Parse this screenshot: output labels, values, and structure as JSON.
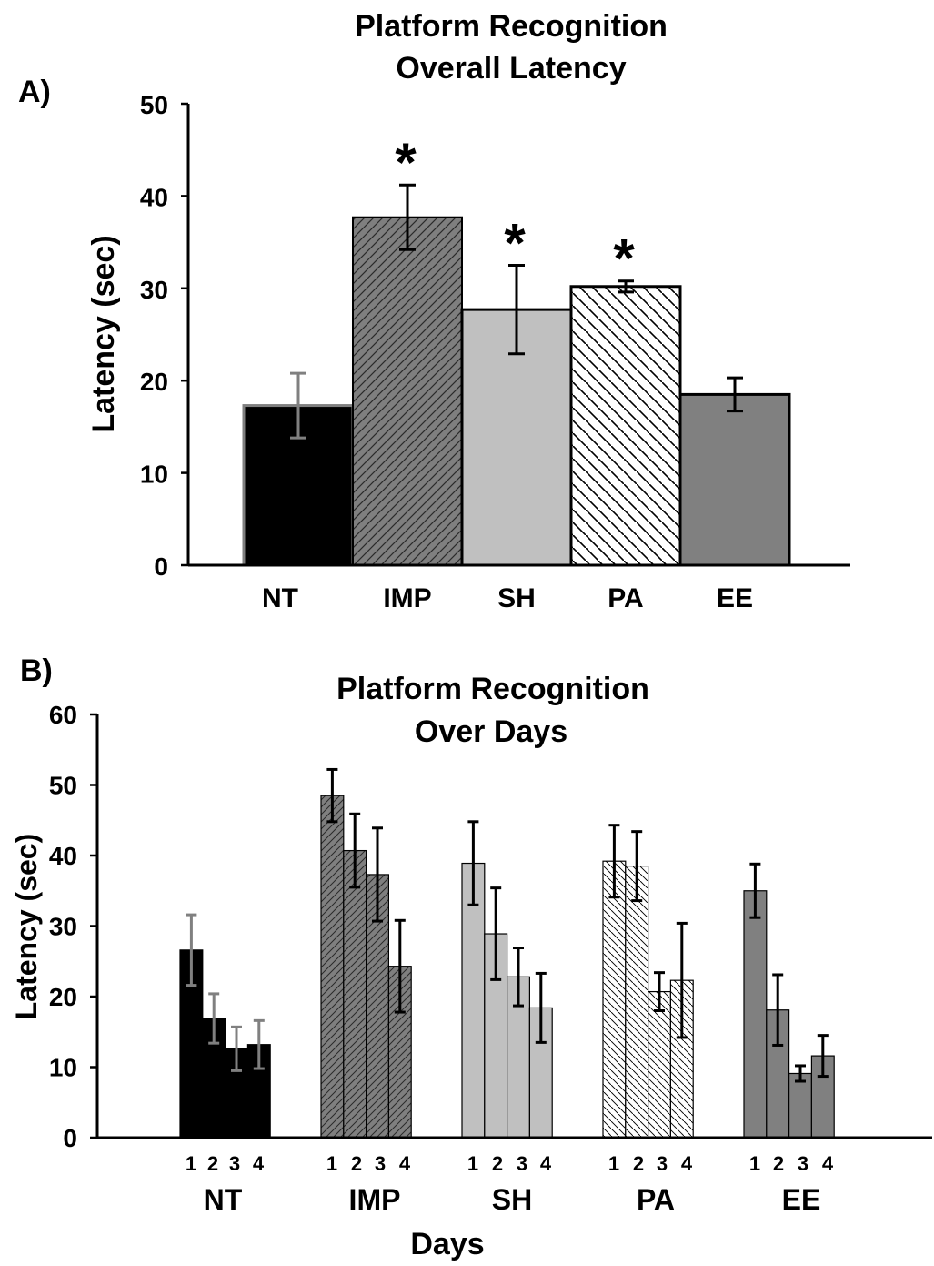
{
  "chart_data": [
    {
      "panel_label": "A)",
      "type": "bar",
      "title": [
        "Platform Recognition",
        "Overall Latency"
      ],
      "ylabel": "Latency (sec)",
      "ylim": [
        0,
        50
      ],
      "yticks": [
        0,
        10,
        20,
        30,
        40,
        50
      ],
      "categories": [
        "NT",
        "IMP",
        "SH",
        "PA",
        "EE"
      ],
      "values": [
        17.3,
        37.7,
        27.7,
        30.2,
        18.5
      ],
      "errors": [
        3.5,
        3.5,
        4.8,
        0.6,
        1.8
      ],
      "significant": [
        false,
        true,
        true,
        true,
        false
      ],
      "significance_marker": "*",
      "fills": [
        "solid-black",
        "hatch-forward-gray",
        "solid-light-gray",
        "hatch-back-white",
        "solid-gray"
      ]
    },
    {
      "panel_label": "B)",
      "type": "bar",
      "title": [
        "Platform Recognition",
        "Over Days"
      ],
      "ylabel": "Latency (sec)",
      "xlabel": "Days",
      "ylim": [
        0,
        60
      ],
      "yticks": [
        0,
        10,
        20,
        30,
        40,
        50,
        60
      ],
      "groups": [
        "NT",
        "IMP",
        "SH",
        "PA",
        "EE"
      ],
      "days": [
        "1",
        "2",
        "3",
        "4"
      ],
      "series": [
        {
          "group": "NT",
          "values": [
            26.6,
            16.9,
            12.6,
            13.2
          ],
          "errors": [
            5.0,
            3.5,
            3.1,
            3.4
          ]
        },
        {
          "group": "IMP",
          "values": [
            48.5,
            40.7,
            37.3,
            24.3
          ],
          "errors": [
            3.7,
            5.2,
            6.6,
            6.5
          ]
        },
        {
          "group": "SH",
          "values": [
            38.9,
            28.9,
            22.8,
            18.4
          ],
          "errors": [
            5.9,
            6.5,
            4.1,
            4.9
          ]
        },
        {
          "group": "PA",
          "values": [
            39.2,
            38.5,
            20.7,
            22.3
          ],
          "errors": [
            5.1,
            4.9,
            2.7,
            8.1
          ]
        },
        {
          "group": "EE",
          "values": [
            35.0,
            18.1,
            9.1,
            11.6
          ],
          "errors": [
            3.8,
            5.0,
            1.1,
            2.9
          ]
        }
      ],
      "fills": [
        "solid-black",
        "hatch-forward-gray",
        "solid-light-gray",
        "hatch-back-white",
        "solid-gray"
      ]
    }
  ],
  "colors": {
    "solid-black": "#000000",
    "hatch-forward-gray": "#7f7f7f",
    "solid-light-gray": "#c0c0c0",
    "hatch-back-white": "#ffffff",
    "solid-gray": "#808080"
  }
}
